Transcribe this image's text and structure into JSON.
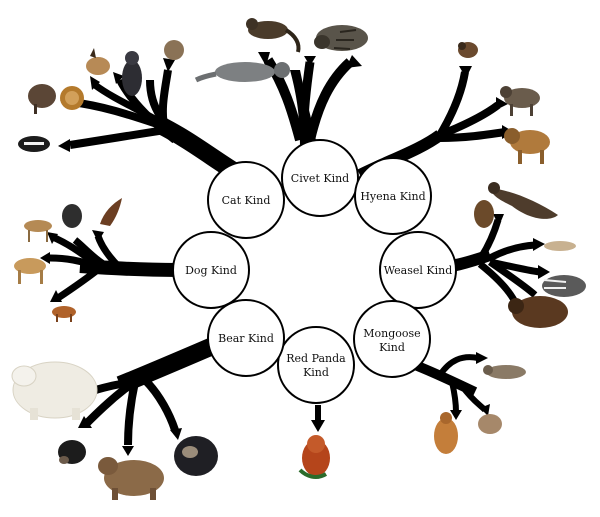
{
  "kinds": [
    {
      "id": "civet",
      "lines": [
        "Civet Kind"
      ],
      "animals": [
        "civet-cat-icon",
        "binturong-icon",
        "civet-icon"
      ]
    },
    {
      "id": "hyena",
      "lines": [
        "Hyena Kind"
      ],
      "animals": [
        "aardwolf-icon",
        "striped-hyena-icon",
        "spotted-hyena-icon"
      ]
    },
    {
      "id": "weasel",
      "lines": [
        "Weasel Kind"
      ],
      "animals": [
        "otter-icon",
        "mink-icon",
        "ferret-icon",
        "badger-icon",
        "wolverine-icon"
      ]
    },
    {
      "id": "mongoose",
      "lines": [
        "Mongoose",
        "Kind"
      ],
      "animals": [
        "meerkat-icon",
        "mongoose-icon",
        "dwarf-mongoose-icon"
      ]
    },
    {
      "id": "red-panda",
      "lines": [
        "Red Panda",
        "Kind"
      ],
      "animals": [
        "red-panda-icon"
      ]
    },
    {
      "id": "bear",
      "lines": [
        "Bear Kind"
      ],
      "animals": [
        "polar-bear-icon",
        "black-bear-icon",
        "grizzly-bear-icon",
        "sloth-bear-icon"
      ]
    },
    {
      "id": "dog",
      "lines": [
        "Dog Kind"
      ],
      "animals": [
        "jackal-icon",
        "dingo-icon",
        "fox-icon",
        "wild-dog-icon",
        "howling-wolf-icon"
      ]
    },
    {
      "id": "cat",
      "lines": [
        "Cat Kind"
      ],
      "animals": [
        "wolf-icon",
        "lion-icon",
        "sphynx-cat-icon",
        "caracal-icon",
        "wildcat-icon",
        "tasmanian-devil-icon"
      ]
    }
  ],
  "colors": {
    "branch": "#000000",
    "circle_fill": "#ffffff",
    "circle_stroke": "#000000",
    "animal_fur": "#8a6a4a",
    "bear_white": "#f3f1ea",
    "red_panda": "#b5451b"
  }
}
